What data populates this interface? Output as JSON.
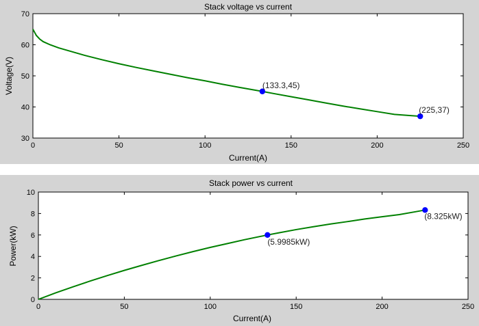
{
  "chart_data": [
    {
      "type": "line",
      "title": "Stack voltage vs current",
      "xlabel": "Current(A)",
      "ylabel": "Voltage(V)",
      "xlim": [
        0,
        250
      ],
      "ylim": [
        30,
        70
      ],
      "xticks": [
        0,
        50,
        100,
        150,
        200,
        250
      ],
      "yticks": [
        30,
        40,
        50,
        60,
        70
      ],
      "line_color": "#008000",
      "marker_color": "#0000ff",
      "series": [
        {
          "x": [
            0,
            1,
            2,
            4,
            6,
            10,
            15,
            20,
            30,
            40,
            50,
            60,
            70,
            80,
            90,
            100,
            110,
            120,
            133.3,
            140,
            150,
            160,
            170,
            180,
            190,
            200,
            210,
            220,
            225
          ],
          "y": [
            65,
            64,
            63,
            61.8,
            61,
            60,
            59,
            58.2,
            56.6,
            55.2,
            53.9,
            52.7,
            51.6,
            50.5,
            49.4,
            48.4,
            47.3,
            46.3,
            45,
            44.3,
            43.3,
            42.3,
            41.3,
            40.3,
            39.4,
            38.5,
            37.6,
            37.2,
            37
          ]
        }
      ],
      "data_points": [
        {
          "x": 133.3,
          "y": 45,
          "label": "(133.3,45)"
        },
        {
          "x": 225,
          "y": 37,
          "label": "(225,37)"
        }
      ]
    },
    {
      "type": "line",
      "title": "Stack power vs current",
      "xlabel": "Current(A)",
      "ylabel": "Power(kW)",
      "xlim": [
        0,
        250
      ],
      "ylim": [
        0,
        10
      ],
      "xticks": [
        0,
        50,
        100,
        150,
        200,
        250
      ],
      "yticks": [
        0,
        2,
        4,
        6,
        8,
        10
      ],
      "line_color": "#008000",
      "marker_color": "#0000ff",
      "series": [
        {
          "x": [
            0,
            5,
            10,
            20,
            30,
            40,
            50,
            60,
            70,
            80,
            90,
            100,
            110,
            120,
            133.3,
            140,
            150,
            160,
            170,
            180,
            190,
            200,
            210,
            220,
            225
          ],
          "y": [
            0,
            0.3,
            0.6,
            1.16,
            1.7,
            2.21,
            2.7,
            3.16,
            3.61,
            4.04,
            4.45,
            4.84,
            5.2,
            5.56,
            5.9985,
            6.2,
            6.5,
            6.77,
            7.02,
            7.25,
            7.49,
            7.7,
            7.9,
            8.18,
            8.325
          ]
        }
      ],
      "data_points": [
        {
          "x": 133.3,
          "y": 5.9985,
          "label": "(5.9985kW)"
        },
        {
          "x": 225,
          "y": 8.325,
          "label": "(8.325kW)"
        }
      ]
    }
  ]
}
